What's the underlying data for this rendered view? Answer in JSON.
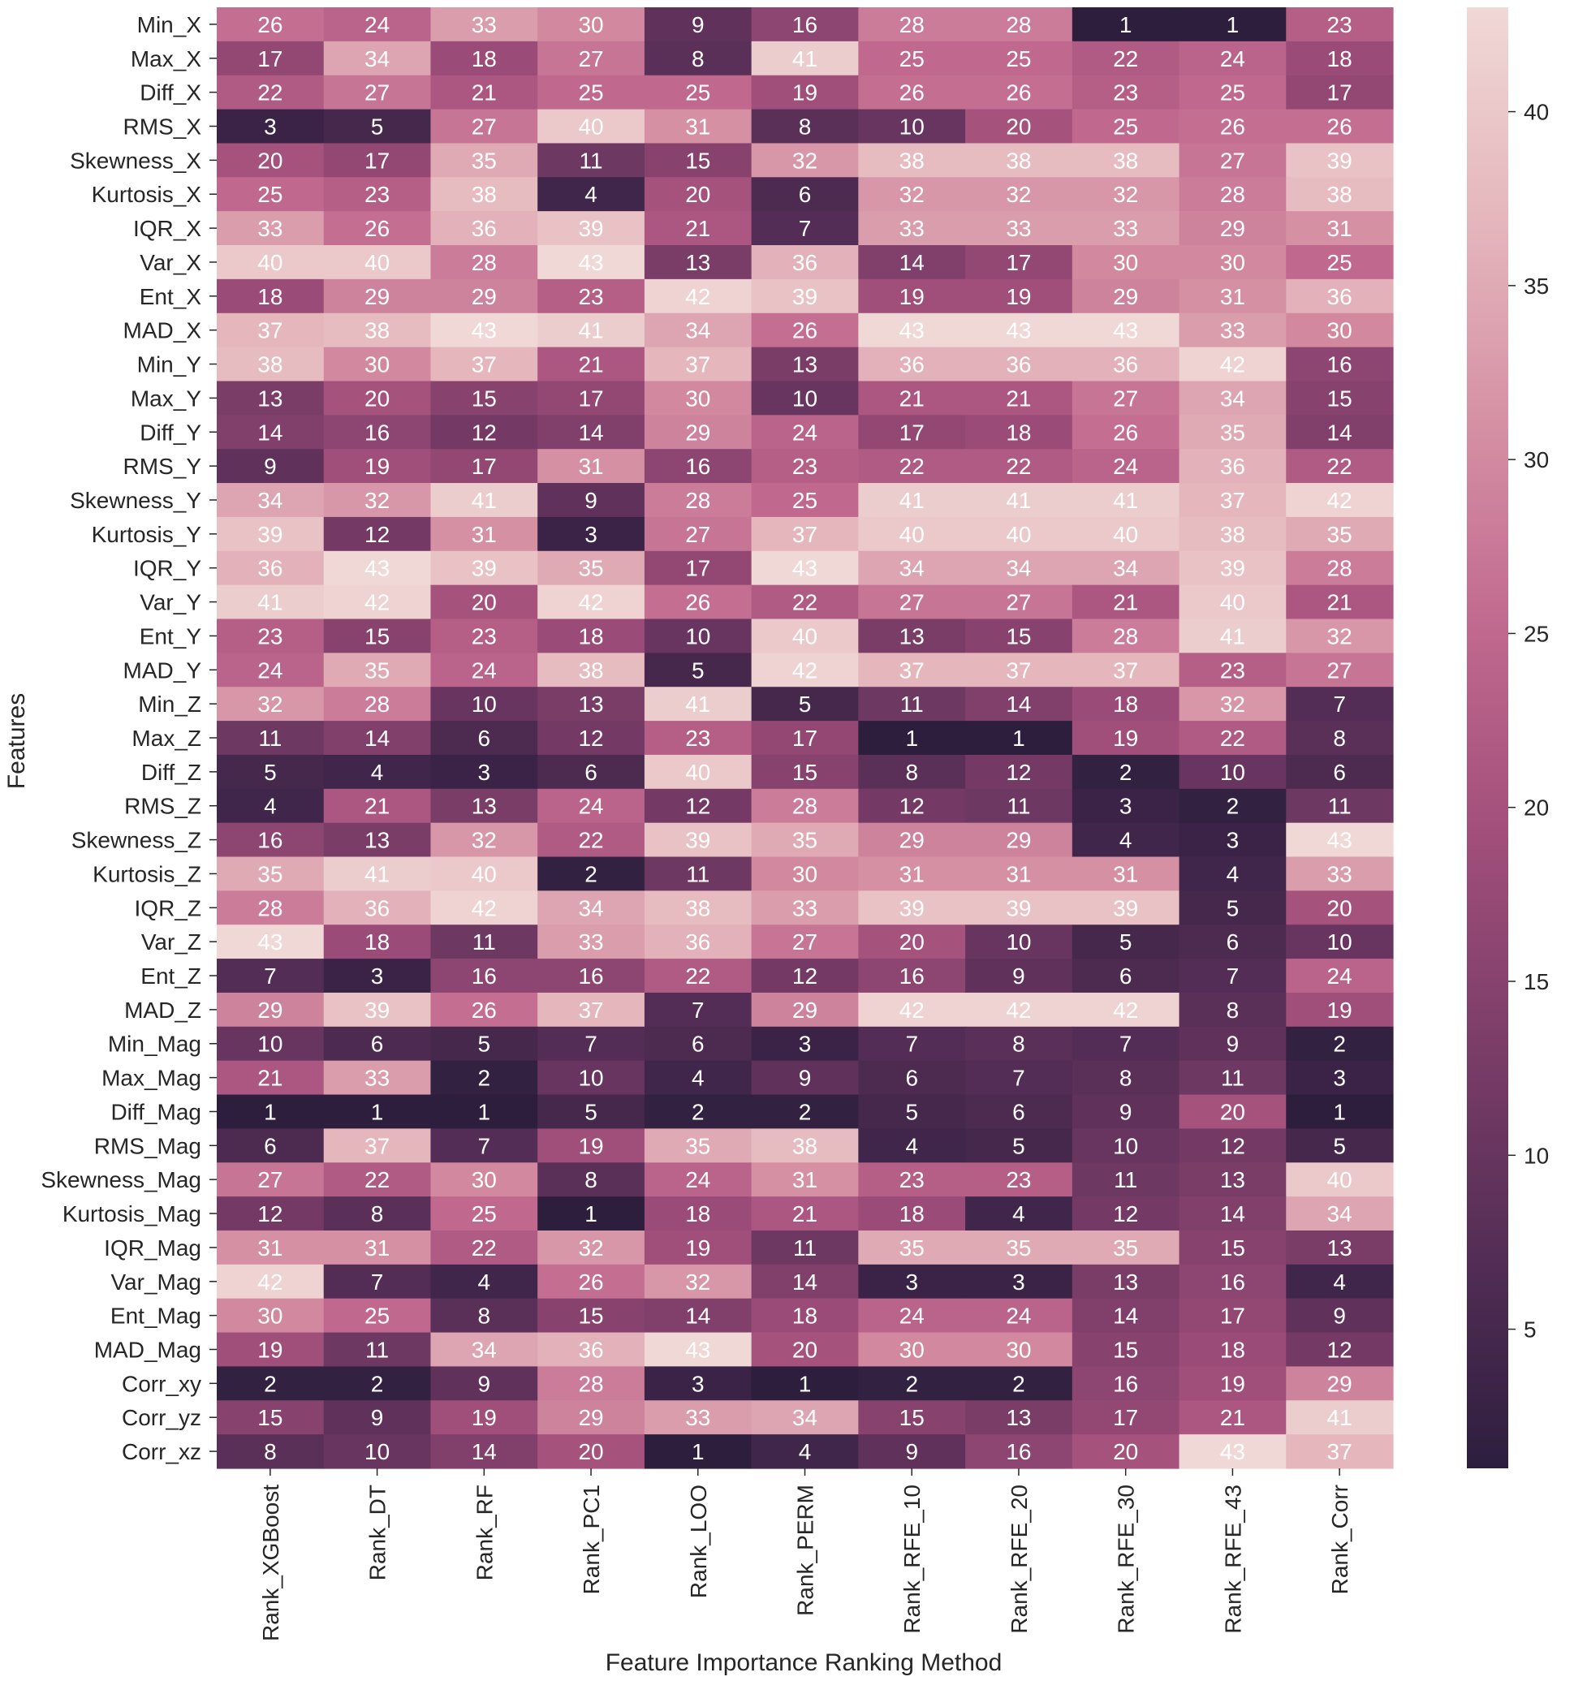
{
  "chart_data": {
    "type": "heatmap",
    "title": "",
    "xlabel": "Feature Importance Ranking Method",
    "ylabel": "Features",
    "columns": [
      "Rank_XGBoost",
      "Rank_DT",
      "Rank_RF",
      "Rank_PC1",
      "Rank_LOO",
      "Rank_PERM",
      "Rank_RFE_10",
      "Rank_RFE_20",
      "Rank_RFE_30",
      "Rank_RFE_43",
      "Rank_Corr"
    ],
    "rows": [
      "Min_X",
      "Max_X",
      "Diff_X",
      "RMS_X",
      "Skewness_X",
      "Kurtosis_X",
      "IQR_X",
      "Var_X",
      "Ent_X",
      "MAD_X",
      "Min_Y",
      "Max_Y",
      "Diff_Y",
      "RMS_Y",
      "Skewness_Y",
      "Kurtosis_Y",
      "IQR_Y",
      "Var_Y",
      "Ent_Y",
      "MAD_Y",
      "Min_Z",
      "Max_Z",
      "Diff_Z",
      "RMS_Z",
      "Skewness_Z",
      "Kurtosis_Z",
      "IQR_Z",
      "Var_Z",
      "Ent_Z",
      "MAD_Z",
      "Min_Mag",
      "Max_Mag",
      "Diff_Mag",
      "RMS_Mag",
      "Skewness_Mag",
      "Kurtosis_Mag",
      "IQR_Mag",
      "Var_Mag",
      "Ent_Mag",
      "MAD_Mag",
      "Corr_xy",
      "Corr_yz",
      "Corr_xz"
    ],
    "values": [
      [
        26,
        24,
        33,
        30,
        9,
        16,
        28,
        28,
        1,
        1,
        23
      ],
      [
        17,
        34,
        18,
        27,
        8,
        41,
        25,
        25,
        22,
        24,
        18
      ],
      [
        22,
        27,
        21,
        25,
        25,
        19,
        26,
        26,
        23,
        25,
        17
      ],
      [
        3,
        5,
        27,
        40,
        31,
        8,
        10,
        20,
        25,
        26,
        26
      ],
      [
        20,
        17,
        35,
        11,
        15,
        32,
        38,
        38,
        38,
        27,
        39
      ],
      [
        25,
        23,
        38,
        4,
        20,
        6,
        32,
        32,
        32,
        28,
        38
      ],
      [
        33,
        26,
        36,
        39,
        21,
        7,
        33,
        33,
        33,
        29,
        31
      ],
      [
        40,
        40,
        28,
        43,
        13,
        36,
        14,
        17,
        30,
        30,
        25
      ],
      [
        18,
        29,
        29,
        23,
        42,
        39,
        19,
        19,
        29,
        31,
        36
      ],
      [
        37,
        38,
        43,
        41,
        34,
        26,
        43,
        43,
        43,
        33,
        30
      ],
      [
        38,
        30,
        37,
        21,
        37,
        13,
        36,
        36,
        36,
        42,
        16
      ],
      [
        13,
        20,
        15,
        17,
        30,
        10,
        21,
        21,
        27,
        34,
        15
      ],
      [
        14,
        16,
        12,
        14,
        29,
        24,
        17,
        18,
        26,
        35,
        14
      ],
      [
        9,
        19,
        17,
        31,
        16,
        23,
        22,
        22,
        24,
        36,
        22
      ],
      [
        34,
        32,
        41,
        9,
        28,
        25,
        41,
        41,
        41,
        37,
        42
      ],
      [
        39,
        12,
        31,
        3,
        27,
        37,
        40,
        40,
        40,
        38,
        35
      ],
      [
        36,
        43,
        39,
        35,
        17,
        43,
        34,
        34,
        34,
        39,
        28
      ],
      [
        41,
        42,
        20,
        42,
        26,
        22,
        27,
        27,
        21,
        40,
        21
      ],
      [
        23,
        15,
        23,
        18,
        10,
        40,
        13,
        15,
        28,
        41,
        32
      ],
      [
        24,
        35,
        24,
        38,
        5,
        42,
        37,
        37,
        37,
        23,
        27
      ],
      [
        32,
        28,
        10,
        13,
        41,
        5,
        11,
        14,
        18,
        32,
        7
      ],
      [
        11,
        14,
        6,
        12,
        23,
        17,
        1,
        1,
        19,
        22,
        8
      ],
      [
        5,
        4,
        3,
        6,
        40,
        15,
        8,
        12,
        2,
        10,
        6
      ],
      [
        4,
        21,
        13,
        24,
        12,
        28,
        12,
        11,
        3,
        2,
        11
      ],
      [
        16,
        13,
        32,
        22,
        39,
        35,
        29,
        29,
        4,
        3,
        43
      ],
      [
        35,
        41,
        40,
        2,
        11,
        30,
        31,
        31,
        31,
        4,
        33
      ],
      [
        28,
        36,
        42,
        34,
        38,
        33,
        39,
        39,
        39,
        5,
        20
      ],
      [
        43,
        18,
        11,
        33,
        36,
        27,
        20,
        10,
        5,
        6,
        10
      ],
      [
        7,
        3,
        16,
        16,
        22,
        12,
        16,
        9,
        6,
        7,
        24
      ],
      [
        29,
        39,
        26,
        37,
        7,
        29,
        42,
        42,
        42,
        8,
        19
      ],
      [
        10,
        6,
        5,
        7,
        6,
        3,
        7,
        8,
        7,
        9,
        2
      ],
      [
        21,
        33,
        2,
        10,
        4,
        9,
        6,
        7,
        8,
        11,
        3
      ],
      [
        1,
        1,
        1,
        5,
        2,
        2,
        5,
        6,
        9,
        20,
        1
      ],
      [
        6,
        37,
        7,
        19,
        35,
        38,
        4,
        5,
        10,
        12,
        5
      ],
      [
        27,
        22,
        30,
        8,
        24,
        31,
        23,
        23,
        11,
        13,
        40
      ],
      [
        12,
        8,
        25,
        1,
        18,
        21,
        18,
        4,
        12,
        14,
        34
      ],
      [
        31,
        31,
        22,
        32,
        19,
        11,
        35,
        35,
        35,
        15,
        13
      ],
      [
        42,
        7,
        4,
        26,
        32,
        14,
        3,
        3,
        13,
        16,
        4
      ],
      [
        30,
        25,
        8,
        15,
        14,
        18,
        24,
        24,
        14,
        17,
        9
      ],
      [
        19,
        11,
        34,
        36,
        43,
        20,
        30,
        30,
        15,
        18,
        12
      ],
      [
        2,
        2,
        9,
        28,
        3,
        1,
        2,
        2,
        16,
        19,
        29
      ],
      [
        15,
        9,
        19,
        29,
        33,
        34,
        15,
        13,
        17,
        21,
        41
      ],
      [
        8,
        10,
        14,
        20,
        1,
        4,
        9,
        16,
        20,
        43,
        37
      ]
    ],
    "vmin": 1,
    "vmax": 43,
    "colorbar_ticks": [
      5,
      10,
      15,
      20,
      25,
      30,
      35,
      40
    ],
    "colormap": [
      "#2d1e3e",
      "#532d55",
      "#7a3d68",
      "#a04e7a",
      "#c0688e",
      "#d590a4",
      "#e5b7bd",
      "#f0d8d6"
    ]
  }
}
